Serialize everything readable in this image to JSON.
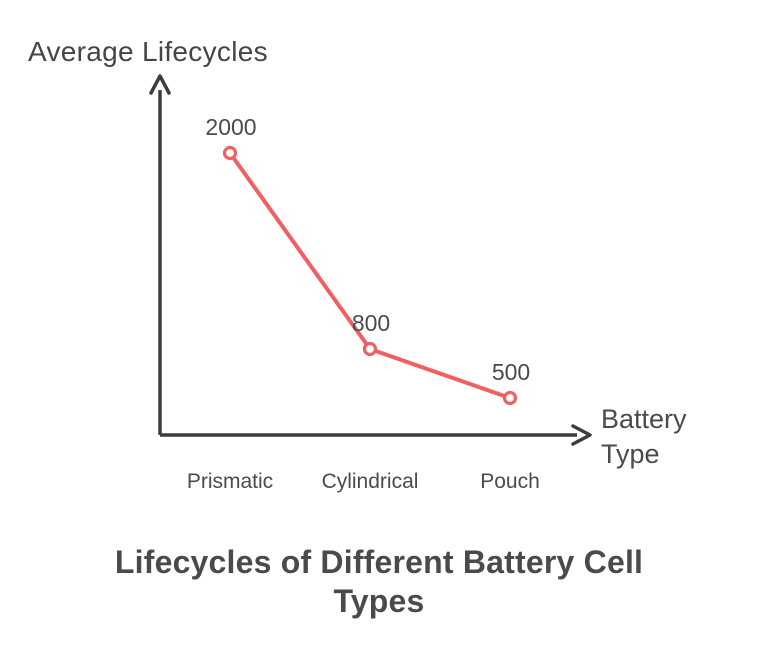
{
  "chart_data": {
    "type": "line",
    "title": "Lifecycles of Different Battery Cell Types",
    "ylabel": "Average Lifecycles",
    "xlabel": "Battery Type",
    "categories": [
      "Prismatic",
      "Cylindrical",
      "Pouch"
    ],
    "values": [
      2000,
      800,
      500
    ],
    "point_labels": [
      "2000",
      "800",
      "500"
    ],
    "ylim": [
      0,
      2500
    ],
    "grid": false,
    "legend": "none",
    "colors": {
      "line": "#f25f60",
      "point_fill": "#ffffff",
      "axis": "#3d3d3d",
      "text": "#4b4b4b",
      "title": "#4a4a4a",
      "background": "#ffffff"
    }
  }
}
